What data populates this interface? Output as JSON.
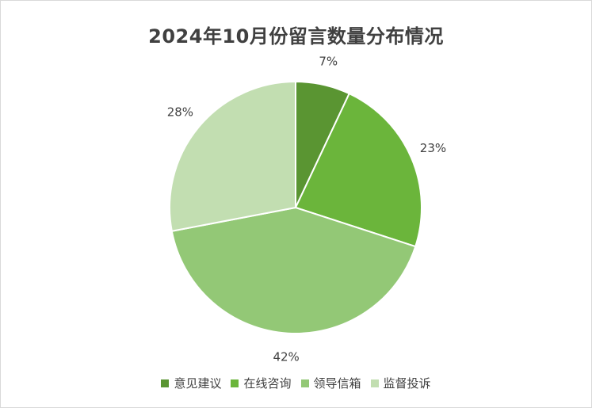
{
  "chart_data": {
    "type": "pie",
    "title": "2024年10月份留言数量分布情况",
    "slices": [
      {
        "name": "意见建议",
        "value": 7,
        "label": "7%",
        "color": "#5a9532"
      },
      {
        "name": "在线咨询",
        "value": 23,
        "label": "23%",
        "color": "#6bb53b"
      },
      {
        "name": "领导信箱",
        "value": 42,
        "label": "42%",
        "color": "#93c876"
      },
      {
        "name": "监督投诉",
        "value": 28,
        "label": "28%",
        "color": "#c2deb1"
      }
    ],
    "legend_position": "bottom",
    "start_angle": "12 o'clock",
    "direction": "clockwise"
  }
}
